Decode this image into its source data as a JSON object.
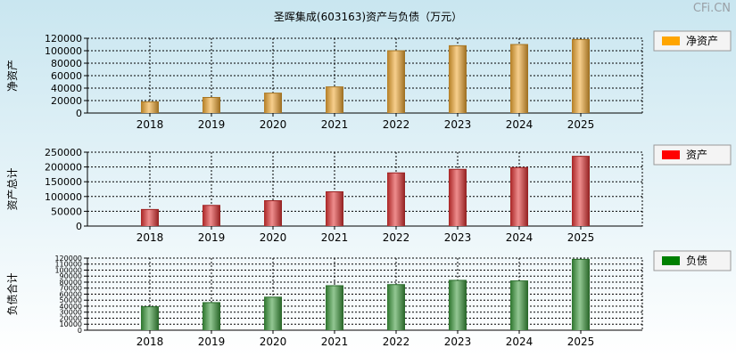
{
  "title": "圣晖集成(603163)资产与负债（万元）",
  "watermark": "CFi.CN",
  "chart_data": [
    {
      "type": "bar",
      "ylabel": "净资产",
      "legend": "净资产",
      "color": "#f0a830",
      "legend_color": "#ffa500",
      "categories": [
        "2018",
        "2019",
        "2020",
        "2021",
        "2022",
        "2023",
        "2024",
        "2025"
      ],
      "values": [
        18000,
        25000,
        32000,
        42000,
        100000,
        108000,
        110000,
        118000
      ],
      "yticks": [
        0,
        20000,
        40000,
        60000,
        80000,
        100000,
        120000
      ],
      "ylim": [
        0,
        120000
      ],
      "grid": true,
      "legend_position": "right"
    },
    {
      "type": "bar",
      "ylabel": "资产总计",
      "legend": "资产",
      "color": "#e03030",
      "legend_color": "#ff0000",
      "categories": [
        "2018",
        "2019",
        "2020",
        "2021",
        "2022",
        "2023",
        "2024",
        "2025"
      ],
      "values": [
        56000,
        70000,
        86000,
        116000,
        180000,
        192000,
        198000,
        236000
      ],
      "yticks": [
        0,
        50000,
        100000,
        150000,
        200000,
        250000
      ],
      "ylim": [
        0,
        250000
      ],
      "grid": true,
      "legend_position": "right"
    },
    {
      "type": "bar",
      "ylabel": "负债合计",
      "legend": "负债",
      "color": "#3a9a3a",
      "legend_color": "#008000",
      "categories": [
        "2018",
        "2019",
        "2020",
        "2021",
        "2022",
        "2023",
        "2024",
        "2025"
      ],
      "values": [
        39000,
        46000,
        55000,
        74000,
        76000,
        83000,
        82000,
        118000
      ],
      "yticks": [
        0,
        10000,
        20000,
        30000,
        40000,
        50000,
        60000,
        70000,
        80000,
        90000,
        100000,
        110000,
        120000
      ],
      "ylim": [
        0,
        120000
      ],
      "grid": true,
      "legend_position": "right"
    }
  ]
}
